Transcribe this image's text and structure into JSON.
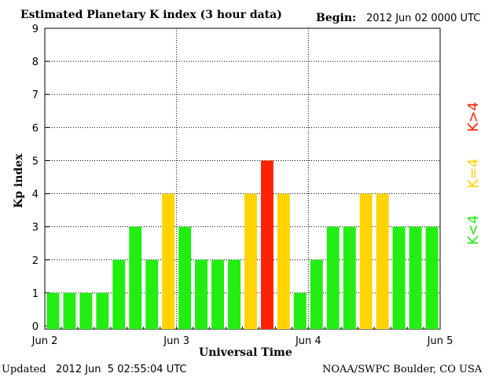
{
  "header": {
    "title": "Estimated Planetary K index (3 hour data)",
    "begin_label": "Begin:",
    "begin_value": "2012 Jun 02 0000 UTC"
  },
  "footer": {
    "updated_label": "Updated",
    "updated_value": "2012 Jun  5 02:55:04 UTC",
    "source": "NOAA/SWPC Boulder, CO USA"
  },
  "legend": {
    "low": "K<4",
    "equal": "K=4",
    "high": "K>4"
  },
  "colors": {
    "low": "#22ee11",
    "equal": "#ffd400",
    "high": "#ff2200",
    "grid": "#000000"
  },
  "chart_data": {
    "type": "bar",
    "title": "Estimated Planetary K index (3 hour data)",
    "xlabel": "Universal Time",
    "ylabel": "Kp index",
    "ylim": [
      0,
      9
    ],
    "yticks": [
      "0",
      "1",
      "2",
      "3",
      "4",
      "5",
      "6",
      "7",
      "8",
      "9"
    ],
    "xticks": [
      "Jun 2",
      "Jun 3",
      "Jun 4",
      "Jun 5"
    ],
    "bars_per_day": 8,
    "values": [
      1,
      1,
      1,
      1,
      2,
      3,
      2,
      4,
      3,
      2,
      2,
      2,
      4,
      5,
      4,
      1,
      2,
      3,
      3,
      4,
      4,
      3,
      3,
      3
    ],
    "grid": true,
    "legend_position": "right"
  }
}
